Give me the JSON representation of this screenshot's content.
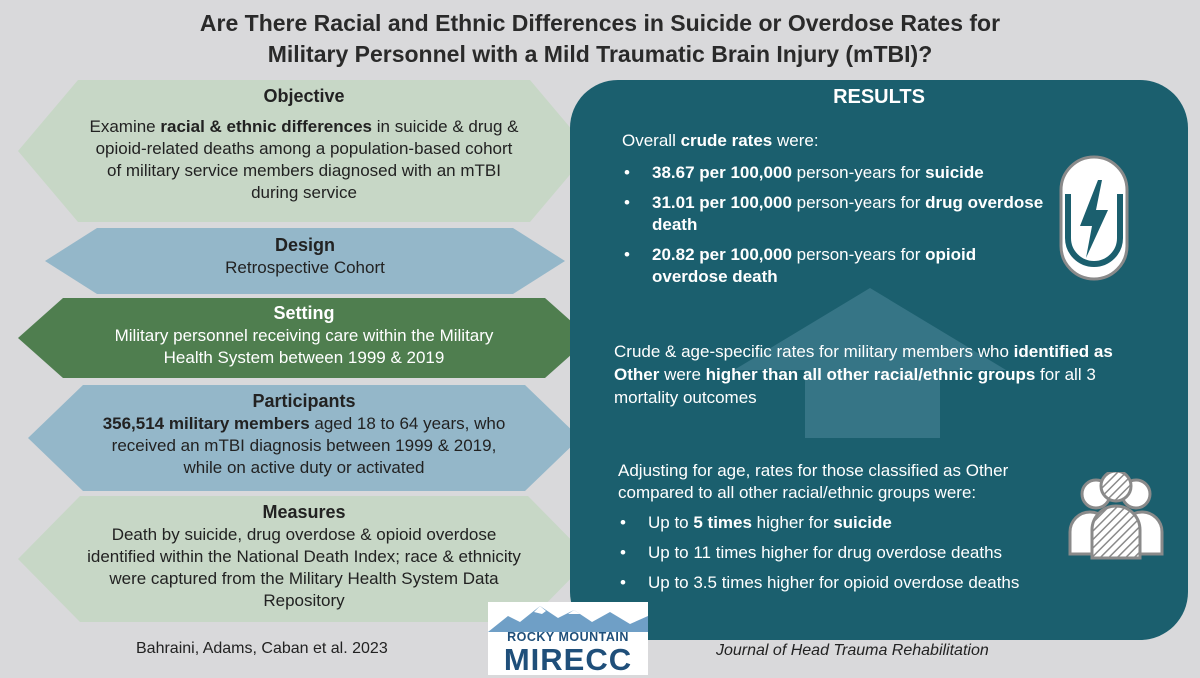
{
  "title": {
    "line1": "Are There Racial and Ethnic Differences in Suicide or Overdose Rates for",
    "line2": "Military Personnel with a Mild Traumatic Brain Injury (mTBI)?"
  },
  "colors": {
    "results_bg": "#1b5f6e",
    "objective": "#c7d7c6",
    "design": "#94b7c9",
    "setting": "#4f7e4f",
    "participants": "#94b7c9",
    "measures": "#c7d7c6"
  },
  "objective": {
    "heading": "Objective",
    "t1": "Examine ",
    "t2": "racial & ethnic differences",
    "t3": " in suicide & drug & opioid-related deaths among a population-based cohort of military service members diagnosed with an mTBI during service"
  },
  "design": {
    "heading": "Design",
    "text": "Retrospective Cohort"
  },
  "setting": {
    "heading": "Setting",
    "text": "Military personnel receiving care within the Military Health System between 1999 & 2019"
  },
  "participants": {
    "heading": "Participants",
    "t1": "356,514 military members",
    "t2": " aged 18 to 64 years, who received an mTBI diagnosis between 1999 & 2019, while on active duty or activated"
  },
  "measures": {
    "heading": "Measures",
    "text": "Death by suicide, drug overdose & opioid overdose identified within the National Death Index; race & ethnicity were captured from the Military Health System Data Repository"
  },
  "results": {
    "heading": "RESULTS",
    "intro1": "Overall ",
    "intro2": "crude rates",
    "intro3": " were:",
    "rates": [
      {
        "value": "38.67 per 100,000",
        "mid": " person-years for ",
        "outcome": "suicide"
      },
      {
        "value": "31.01 per 100,000",
        "mid": " person-years for ",
        "outcome": "drug overdose death"
      },
      {
        "value": "20.82 per 100,000",
        "mid": " person-years for ",
        "outcome": "opioid overdose death"
      }
    ],
    "crude1": "Crude & age-specific rates for military members who ",
    "crude2": "identified as Other",
    "crude3": " were ",
    "crude4": "higher than all other racial/ethnic groups",
    "crude5": " for all 3 mortality outcomes",
    "adjust": "Adjusting for age, rates for those classified as Other compared to all other racial/ethnic groups were:",
    "b1a": "Up to ",
    "b1b": "5 times",
    "b1c": " higher for ",
    "b1d": "suicide",
    "b2": "Up to 11 times higher for drug overdose deaths",
    "b3": "Up to 3.5 times higher for opioid overdose deaths"
  },
  "icons": {
    "brain_injury": "lightning-bolt-icon",
    "people": "group-people-icon"
  },
  "footer": {
    "authors": "Bahraini, Adams, Caban et al. 2023",
    "journal": "Journal of Head Trauma Rehabilitation",
    "logo_top": "ROCKY MOUNTAIN",
    "logo_bottom": "MIRECC"
  }
}
